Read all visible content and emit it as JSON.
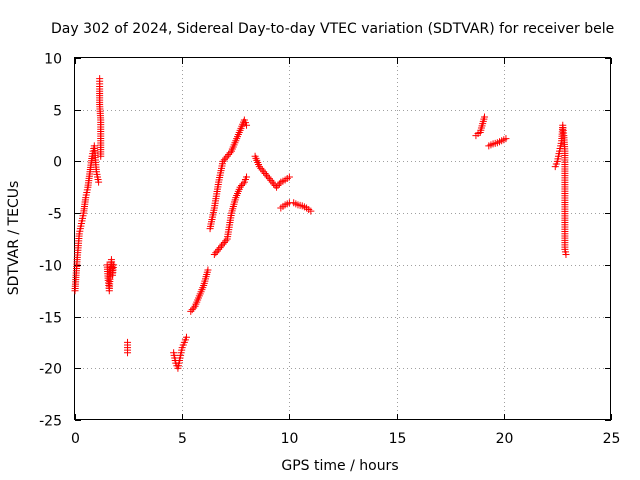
{
  "chart_data": {
    "type": "scatter",
    "title": "Day 302 of 2024, Sidereal Day-to-day VTEC variation (SDTVAR) for receiver bele",
    "xlabel": "GPS time / hours",
    "ylabel": "SDTVAR / TECUs",
    "xlim": [
      0,
      25
    ],
    "ylim": [
      -25,
      10
    ],
    "xticks": [
      0,
      5,
      10,
      15,
      20,
      25
    ],
    "yticks": [
      -25,
      -20,
      -15,
      -10,
      -5,
      0,
      5,
      10
    ],
    "xtick_labels": [
      "0",
      "5",
      "10",
      "15",
      "20",
      "25"
    ],
    "ytick_labels": [
      "-25",
      "-20",
      "-15",
      "-10",
      "-5",
      "0",
      "5",
      "10"
    ],
    "grid": true,
    "marker": "+",
    "color": "#ff0000",
    "segments": [
      {
        "x": [
          0.0,
          0.1,
          0.2,
          0.3,
          0.4,
          0.5,
          0.6,
          0.7,
          0.8,
          0.9,
          1.0,
          1.1
        ],
        "y": [
          -12.5,
          -9.5,
          -7.0,
          -6.0,
          -5.0,
          -3.5,
          -2.5,
          -1.0,
          0.5,
          1.5,
          -1.0,
          -2.0
        ]
      },
      {
        "x": [
          1.15,
          1.15,
          1.15,
          1.2,
          1.2,
          1.2
        ],
        "y": [
          8.0,
          7.0,
          5.5,
          4.0,
          2.0,
          0.5
        ]
      },
      {
        "x": [
          1.5,
          1.55,
          1.6,
          1.65,
          1.7,
          1.75,
          1.8
        ],
        "y": [
          -10.0,
          -11.5,
          -12.5,
          -10.5,
          -9.5,
          -11.0,
          -10.0
        ]
      },
      {
        "x": [
          2.45,
          2.45,
          2.45
        ],
        "y": [
          -17.5,
          -18.0,
          -18.5
        ]
      },
      {
        "x": [
          4.6,
          4.7,
          4.8,
          4.9,
          5.0,
          5.1,
          5.2
        ],
        "y": [
          -18.5,
          -19.5,
          -20.0,
          -19.0,
          -18.0,
          -17.5,
          -17.0
        ]
      },
      {
        "x": [
          5.4,
          5.6,
          5.8,
          6.0,
          6.2
        ],
        "y": [
          -14.5,
          -14.0,
          -13.0,
          -12.0,
          -10.5
        ]
      },
      {
        "x": [
          6.3,
          6.5,
          6.7,
          6.9,
          7.1,
          7.3,
          7.5,
          7.7,
          7.9,
          8.0
        ],
        "y": [
          -6.5,
          -4.5,
          -2.0,
          0.0,
          0.5,
          1.0,
          2.0,
          3.0,
          4.0,
          3.5
        ]
      },
      {
        "x": [
          6.5,
          6.7,
          6.9,
          7.1,
          7.3,
          7.5,
          7.7,
          7.9,
          8.0
        ],
        "y": [
          -9.0,
          -8.5,
          -8.0,
          -7.5,
          -5.0,
          -3.5,
          -2.5,
          -2.0,
          -1.5
        ]
      },
      {
        "x": [
          8.4,
          8.6,
          8.8,
          9.0,
          9.2,
          9.4,
          9.6,
          9.8,
          10.0
        ],
        "y": [
          0.5,
          -0.5,
          -1.0,
          -1.5,
          -2.0,
          -2.5,
          -2.0,
          -1.8,
          -1.5
        ]
      },
      {
        "x": [
          9.6,
          9.8,
          10.0,
          10.2,
          10.4,
          10.6,
          10.8,
          11.0
        ],
        "y": [
          -4.5,
          -4.2,
          -4.0,
          -4.0,
          -4.2,
          -4.3,
          -4.5,
          -4.8
        ]
      },
      {
        "x": [
          18.7,
          18.8,
          18.9,
          19.1
        ],
        "y": [
          2.5,
          2.7,
          2.8,
          4.3
        ]
      },
      {
        "x": [
          19.3,
          19.5,
          19.7,
          19.9,
          20.1
        ],
        "y": [
          1.5,
          1.7,
          1.8,
          2.0,
          2.2
        ]
      },
      {
        "x": [
          22.4,
          22.5,
          22.6,
          22.7,
          22.75,
          22.8,
          22.85,
          22.85,
          22.9
        ],
        "y": [
          -0.5,
          0.0,
          1.0,
          2.0,
          3.5,
          2.5,
          1.0,
          -8.5,
          -9.0
        ]
      }
    ]
  }
}
